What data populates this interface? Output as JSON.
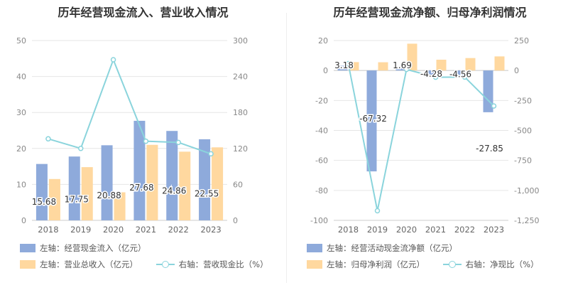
{
  "chart_data": [
    {
      "type": "bar",
      "title": "历年经营现金流入、营业收入情况",
      "categories": [
        "2018",
        "2019",
        "2020",
        "2021",
        "2022",
        "2023"
      ],
      "left_axis": {
        "ticks": [
          "0",
          "10",
          "20",
          "30",
          "40",
          "50"
        ],
        "ylim": [
          0,
          50
        ]
      },
      "right_axis": {
        "ticks": [
          "0",
          "60",
          "120",
          "180",
          "240",
          "300"
        ],
        "ylim": [
          0,
          300
        ]
      },
      "series": [
        {
          "name": "左轴：经营现金流入（亿元）",
          "axis": "left",
          "kind": "bar",
          "color": "#8eaadb",
          "values": [
            15.68,
            17.75,
            20.88,
            27.68,
            24.86,
            22.55
          ],
          "labels": [
            "15.68",
            "17.75",
            "20.88",
            "27.68",
            "24.86",
            "22.55"
          ]
        },
        {
          "name": "左轴：营业总收入（亿元）",
          "axis": "left",
          "kind": "bar",
          "color": "#ffd89f",
          "values": [
            11.5,
            14.8,
            7.8,
            21,
            19.1,
            20.3
          ]
        },
        {
          "name": "右轴：营收现金比（%）",
          "axis": "right",
          "kind": "line",
          "color": "#8ad4dc",
          "values": [
            136,
            120,
            268,
            132,
            130,
            111
          ]
        }
      ]
    },
    {
      "type": "bar",
      "title": "历年经营现金流净额、归母净利润情况",
      "categories": [
        "2018",
        "2019",
        "2020",
        "2021",
        "2022",
        "2023"
      ],
      "left_axis": {
        "ticks": [
          "-100",
          "-80",
          "-60",
          "-40",
          "-20",
          "0",
          "20"
        ],
        "ylim": [
          -100,
          20
        ]
      },
      "right_axis": {
        "ticks": [
          "-1,250",
          "-1,000",
          "-750",
          "-500",
          "-250",
          "0",
          "250"
        ],
        "ylim": [
          -1250,
          250
        ]
      },
      "series": [
        {
          "name": "左轴：经营活动现金流净额（亿元）",
          "axis": "left",
          "kind": "bar",
          "color": "#8eaadb",
          "values": [
            3.18,
            -67.32,
            1.69,
            -4.28,
            -4.56,
            -27.85
          ],
          "labels": [
            "3.18",
            "-67.32",
            "1.69",
            "-4.28",
            "-4.56",
            "-27.85"
          ]
        },
        {
          "name": "左轴：归母净利润（亿元）",
          "axis": "left",
          "kind": "bar",
          "color": "#ffd89f",
          "values": [
            5.6,
            5.5,
            17.9,
            7.2,
            8.3,
            9.4
          ]
        },
        {
          "name": "右轴：净现比（%）",
          "axis": "right",
          "kind": "line",
          "color": "#8ad4dc",
          "values": [
            57,
            -1170,
            9,
            -56,
            -55,
            -296
          ]
        }
      ]
    }
  ]
}
